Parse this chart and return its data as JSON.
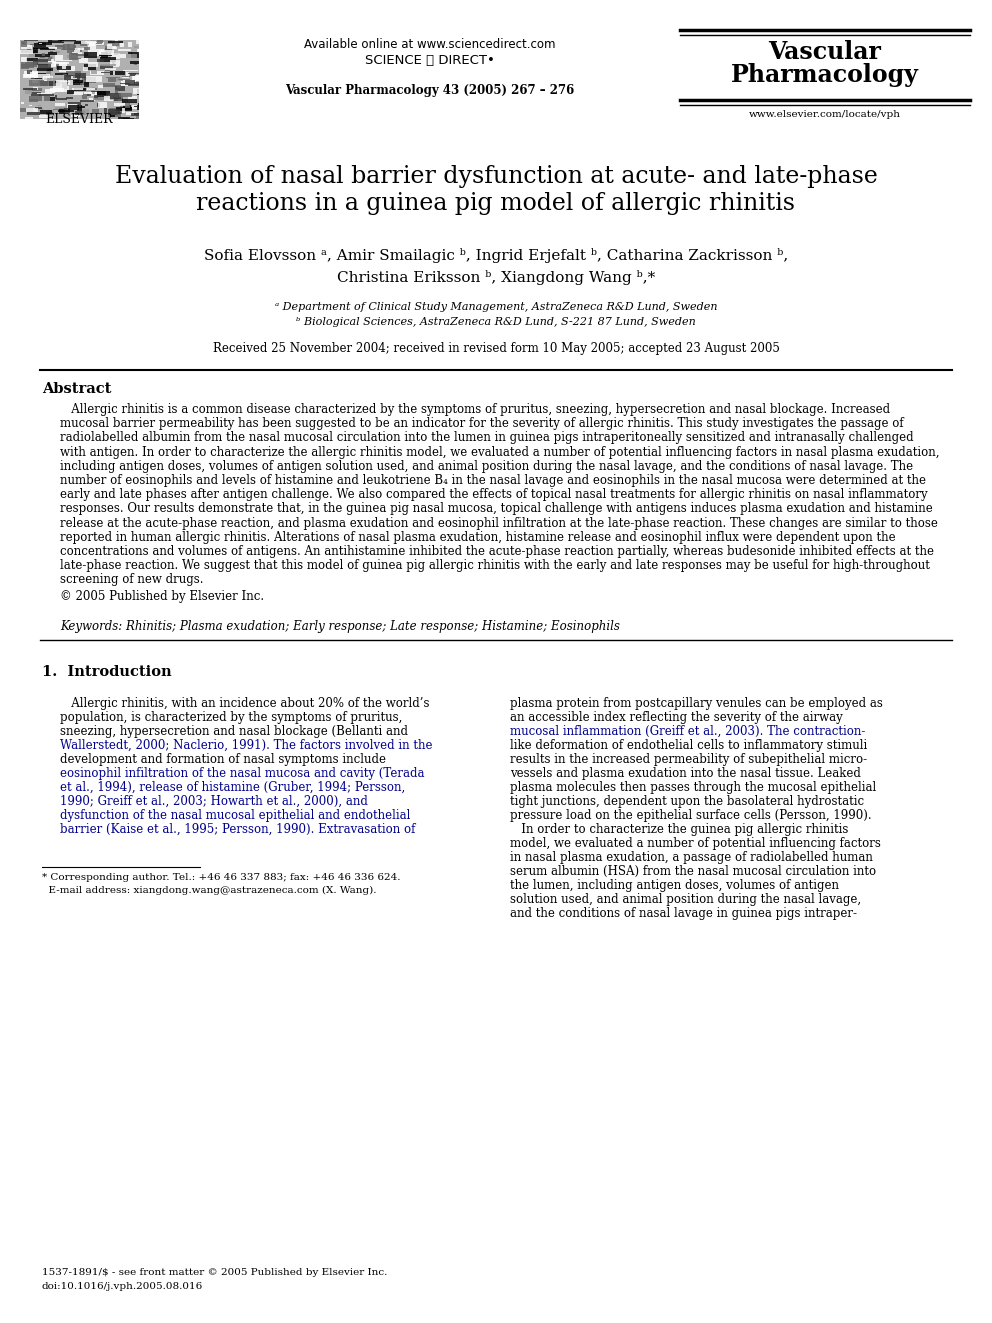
{
  "background_color": "#ffffff",
  "header_available": "Available online at www.sciencedirect.com",
  "header_sd": "SCIENCE ⓐ DIRECT•",
  "header_journal_info": "Vascular Pharmacology 43 (2005) 267 – 276",
  "journal_name1": "Vascular",
  "journal_name2": "Pharmacology",
  "journal_url": "www.elsevier.com/locate/vph",
  "elsevier_label": "ELSEVIER",
  "title_line1": "Evaluation of nasal barrier dysfunction at acute- and late-phase",
  "title_line2": "reactions in a guinea pig model of allergic rhinitis",
  "author_line1": "Sofia Elovsson ᵃ, Amir Smailagic ᵇ, Ingrid Erjefalt ᵇ, Catharina Zackrisson ᵇ,",
  "author_line2": "Christina Eriksson ᵇ, Xiangdong Wang ᵇ,*",
  "affil1": "ᵃ Department of Clinical Study Management, AstraZeneca R&D Lund, Sweden",
  "affil2": "ᵇ Biological Sciences, AstraZeneca R&D Lund, S-221 87 Lund, Sweden",
  "received": "Received 25 November 2004; received in revised form 10 May 2005; accepted 23 August 2005",
  "abstract_head": "Abstract",
  "abstract_indent": "   Allergic rhinitis is a common disease characterized by the symptoms of pruritus, sneezing, hypersecretion and nasal blockage. Increased mucosal barrier permeability has been suggested to be an indicator for the severity of allergic rhinitis. This study investigates the passage of radiolabelled albumin from the nasal mucosal circulation into the lumen in guinea pigs intraperitoneally sensitized and intranasally challenged with antigen. In order to characterize the allergic rhinitis model, we evaluated a number of potential influencing factors in nasal plasma exudation, including antigen doses, volumes of antigen solution used, and animal position during the nasal lavage, and the conditions of nasal lavage. The number of eosinophils and levels of histamine and leukotriene B₄ in the nasal lavage and eosinophils in the nasal mucosa were determined at the early and late phases after antigen challenge. We also compared the effects of topical nasal treatments for allergic rhinitis on nasal inflammatory responses. Our results demonstrate that, in the guinea pig nasal mucosa, topical challenge with antigens induces plasma exudation and histamine release at the acute-phase reaction, and plasma exudation and eosinophil infiltration at the late-phase reaction. These changes are similar to those reported in human allergic rhinitis. Alterations of nasal plasma exudation, histamine release and eosinophil influx were dependent upon the concentrations and volumes of antigens. An antihistamine inhibited the acute-phase reaction partially, whereas budesonide inhibited effects at the late-phase reaction. We suggest that this model of guinea pig allergic rhinitis with the early and late responses may be useful for high-throughout screening of new drugs.",
  "copyright": "© 2005 Published by Elsevier Inc.",
  "keywords": "Keywords: Rhinitis; Plasma exudation; Early response; Late response; Histamine; Eosinophils",
  "sec1_title": "1.  Introduction",
  "col1_lines": [
    "   Allergic rhinitis, with an incidence about 20% of the world’s",
    "population, is characterized by the symptoms of pruritus,",
    "sneezing, hypersecretion and nasal blockage (Bellanti and",
    "Wallerstedt, 2000; Naclerio, 1991). The factors involved in the",
    "development and formation of nasal symptoms include",
    "eosinophil infiltration of the nasal mucosa and cavity (Terada",
    "et al., 1994), release of histamine (Gruber, 1994; Persson,",
    "1990; Greiff et al., 2003; Howarth et al., 2000), and",
    "dysfunction of the nasal mucosal epithelial and endothelial",
    "barrier (Kaise et al., 1995; Persson, 1990). Extravasation of"
  ],
  "col1_links": [
    3,
    5,
    6,
    7,
    8,
    9
  ],
  "col2_lines": [
    "plasma protein from postcapillary venules can be employed as",
    "an accessible index reflecting the severity of the airway",
    "mucosal inflammation (Greiff et al., 2003). The contraction-",
    "like deformation of endothelial cells to inflammatory stimuli",
    "results in the increased permeability of subepithelial micro-",
    "vessels and plasma exudation into the nasal tissue. Leaked",
    "plasma molecules then passes through the mucosal epithelial",
    "tight junctions, dependent upon the basolateral hydrostatic",
    "pressure load on the epithelial surface cells (Persson, 1990).",
    "   In order to characterize the guinea pig allergic rhinitis",
    "model, we evaluated a number of potential influencing factors",
    "in nasal plasma exudation, a passage of radiolabelled human",
    "serum albumin (HSA) from the nasal mucosal circulation into",
    "the lumen, including antigen doses, volumes of antigen",
    "solution used, and animal position during the nasal lavage,",
    "and the conditions of nasal lavage in guinea pigs intraper-"
  ],
  "col2_links": [
    2
  ],
  "footnote1": "* Corresponding author. Tel.: +46 46 337 883; fax: +46 46 336 624.",
  "footnote2": "  E-mail address: xiangdong.wang@astrazeneca.com (X. Wang).",
  "footer1": "1537-1891/$ - see front matter © 2005 Published by Elsevier Inc.",
  "footer2": "doi:10.1016/j.vph.2005.08.016",
  "link_color": "#00008B",
  "text_color": "#000000"
}
